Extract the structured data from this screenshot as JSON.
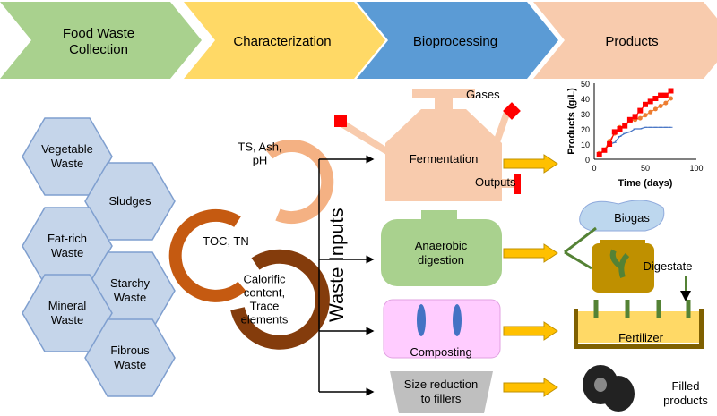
{
  "stages": [
    {
      "label": "Food Waste\nCollection",
      "color": "#a9d18e"
    },
    {
      "label": "Characterization",
      "color": "#ffd966"
    },
    {
      "label": "Bioprocessing",
      "color": "#5b9bd5"
    },
    {
      "label": "Products",
      "color": "#f8cbad"
    }
  ],
  "wastes": [
    "Vegetable\nWaste",
    "Sludges",
    "Fat-rich\nWaste",
    "Starchy\nWaste",
    "Mineral\nWaste",
    "Fibrous\nWaste"
  ],
  "characterization": [
    "TS, Ash,\npH",
    "TOC, TN",
    "Calorific\ncontent,\nTrace\nelements"
  ],
  "waste_inputs": "Waste Inputs",
  "processes": {
    "fermentation": "Fermentation",
    "gases": "Gases",
    "outputs": "Outputs",
    "anaerobic": "Anaerobic\ndigestion",
    "composting": "Composting",
    "size_reduction": "Size reduction\nto fillers"
  },
  "products": {
    "biogas": "Biogas",
    "digestate": "Digestate",
    "fertilizer": "Fertilizer",
    "filled": "Filled\nproducts"
  },
  "chart_data": {
    "type": "line",
    "xlabel": "Time (days)",
    "ylabel": "Products (g/L)",
    "xlim": [
      0,
      100
    ],
    "ylim": [
      0,
      50
    ],
    "xticks": [
      0,
      50,
      100
    ],
    "yticks": [
      0,
      10,
      20,
      30,
      40,
      50
    ],
    "x": [
      5,
      10,
      15,
      20,
      25,
      30,
      35,
      40,
      45,
      50,
      55,
      60,
      65,
      70,
      75
    ],
    "series": [
      {
        "color": "#ff0000",
        "marker": "square",
        "values": [
          3,
          6,
          10,
          18,
          20,
          22,
          26,
          28,
          32,
          36,
          38,
          40,
          42,
          42,
          45
        ]
      },
      {
        "color": "#ed7d31",
        "marker": "circle",
        "values": [
          4,
          6,
          12,
          17,
          21,
          22,
          25,
          26,
          27,
          29,
          31,
          33,
          35,
          37,
          40
        ]
      },
      {
        "color": "#4472c4",
        "marker": "dash",
        "values": [
          3,
          6,
          10,
          11,
          15,
          17,
          18,
          20,
          20,
          21,
          21,
          21,
          21,
          21,
          21
        ]
      }
    ]
  }
}
